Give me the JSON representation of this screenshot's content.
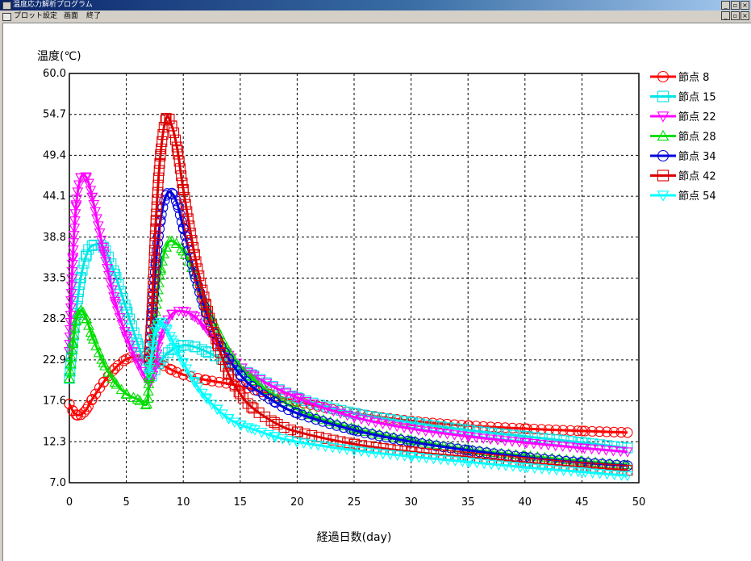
{
  "window": {
    "title": "温度応力解析プログラム",
    "buttons": [
      "_",
      "▫",
      "×"
    ]
  },
  "menu": {
    "items": [
      "プロット設定",
      "画面",
      "終了"
    ]
  },
  "chart_data": {
    "type": "line",
    "ylabel": "温度(℃)",
    "xlabel": "経過日数(day)",
    "xlim": [
      0,
      50
    ],
    "ylim": [
      7.0,
      60.0
    ],
    "x_ticks": [
      "0",
      "5",
      "10",
      "15",
      "20",
      "25",
      "30",
      "35",
      "40",
      "45",
      "50"
    ],
    "y_ticks": [
      "60.0",
      "54.7",
      "49.4",
      "44.1",
      "38.8",
      "33.5",
      "28.2",
      "22.9",
      "17.6",
      "12.3",
      "7.0"
    ],
    "grid": true,
    "legend_position": "right",
    "series": [
      {
        "name": "節点  8",
        "color": "#ff0000",
        "marker": "circle",
        "x": [
          0,
          0.3,
          0.6,
          1,
          1.5,
          2,
          3,
          4,
          5,
          6,
          7,
          8,
          9,
          10,
          12,
          15,
          20,
          25,
          30,
          35,
          40,
          45,
          49
        ],
        "y": [
          17.2,
          16.3,
          15.8,
          15.8,
          16.5,
          17.8,
          20.0,
          21.8,
          23.0,
          23.4,
          23.2,
          22.4,
          21.6,
          21.0,
          20.3,
          19.5,
          17.5,
          16.0,
          15.0,
          14.4,
          14.0,
          13.7,
          13.5
        ]
      },
      {
        "name": "節点 15",
        "color": "#00e5e5",
        "marker": "square",
        "x": [
          0,
          0.5,
          1,
          1.5,
          2,
          3,
          4,
          5,
          6,
          7,
          7.2,
          8,
          9,
          10,
          11,
          12,
          14,
          16,
          20,
          25,
          30,
          35,
          40,
          45,
          49
        ],
        "y": [
          20.5,
          28.0,
          33.5,
          36.5,
          37.7,
          37.5,
          34.0,
          29.5,
          25.0,
          21.0,
          20.8,
          22.8,
          24.2,
          24.8,
          24.6,
          24.0,
          22.5,
          21.0,
          18.0,
          16.0,
          14.8,
          13.8,
          13.0,
          12.2,
          11.5
        ]
      },
      {
        "name": "節点 22",
        "color": "#ff00ff",
        "marker": "triangle-down",
        "x": [
          0,
          0.3,
          0.6,
          1,
          1.5,
          2,
          3,
          4,
          5,
          6,
          7,
          7.5,
          8,
          9,
          10,
          11,
          12,
          14,
          16,
          20,
          25,
          30,
          35,
          40,
          45,
          49
        ],
        "y": [
          24.0,
          36.0,
          43.0,
          46.5,
          46.5,
          44.0,
          37.0,
          30.5,
          26.0,
          22.5,
          20.0,
          22.0,
          26.0,
          28.8,
          29.2,
          28.5,
          27.0,
          23.5,
          21.0,
          18.0,
          15.5,
          14.0,
          13.0,
          12.2,
          11.5,
          11.0
        ]
      },
      {
        "name": "節点 28",
        "color": "#00dd00",
        "marker": "triangle-up",
        "x": [
          0,
          0.3,
          0.6,
          1,
          1.5,
          2,
          3,
          4,
          5,
          6,
          6.8,
          7,
          7.5,
          8,
          8.5,
          9,
          10,
          11,
          12,
          14,
          16,
          20,
          25,
          30,
          35,
          40,
          45,
          49
        ],
        "y": [
          20.5,
          25.0,
          28.0,
          29.3,
          28.2,
          26.0,
          22.5,
          20.0,
          18.5,
          17.8,
          17.2,
          20.5,
          28.0,
          34.5,
          37.5,
          38.3,
          37.0,
          34.0,
          30.0,
          24.0,
          20.5,
          16.5,
          14.0,
          12.5,
          11.3,
          10.5,
          9.8,
          9.3
        ]
      },
      {
        "name": "節点 34",
        "color": "#0000dd",
        "marker": "circle",
        "x": [
          7,
          7.3,
          7.6,
          8,
          8.5,
          9,
          9.5,
          10,
          11,
          12,
          13,
          14,
          15,
          16,
          18,
          20,
          25,
          30,
          35,
          40,
          45,
          49
        ],
        "y": [
          23.0,
          29.0,
          35.5,
          41.0,
          44.2,
          44.5,
          43.0,
          40.0,
          34.0,
          29.0,
          25.5,
          23.0,
          21.0,
          19.5,
          17.5,
          16.0,
          13.8,
          12.3,
          11.2,
          10.3,
          9.6,
          9.2
        ]
      },
      {
        "name": "節点 42",
        "color": "#dd0000",
        "marker": "square",
        "x": [
          7,
          7.3,
          7.6,
          8,
          8.5,
          9,
          9.5,
          10,
          11,
          12,
          13,
          14,
          15,
          16,
          18,
          20,
          25,
          30,
          35,
          40,
          45,
          49
        ],
        "y": [
          23.0,
          31.0,
          41.0,
          49.5,
          54.2,
          53.2,
          50.0,
          45.0,
          36.5,
          30.0,
          25.0,
          21.0,
          18.5,
          16.8,
          14.8,
          13.6,
          12.0,
          11.0,
          10.3,
          9.6,
          9.0,
          8.6
        ]
      },
      {
        "name": "節点 54",
        "color": "#00ffff",
        "marker": "triangle-down",
        "x": [
          7,
          7.3,
          7.6,
          8,
          8.5,
          9,
          9.5,
          10,
          11,
          12,
          13,
          14,
          15,
          16,
          18,
          20,
          25,
          30,
          35,
          40,
          45,
          49
        ],
        "y": [
          21.0,
          24.5,
          27.0,
          27.8,
          27.0,
          25.5,
          24.0,
          22.5,
          20.0,
          18.0,
          16.5,
          15.3,
          14.5,
          14.0,
          13.0,
          12.3,
          11.2,
          10.4,
          9.7,
          9.0,
          8.4,
          7.9
        ]
      }
    ]
  }
}
